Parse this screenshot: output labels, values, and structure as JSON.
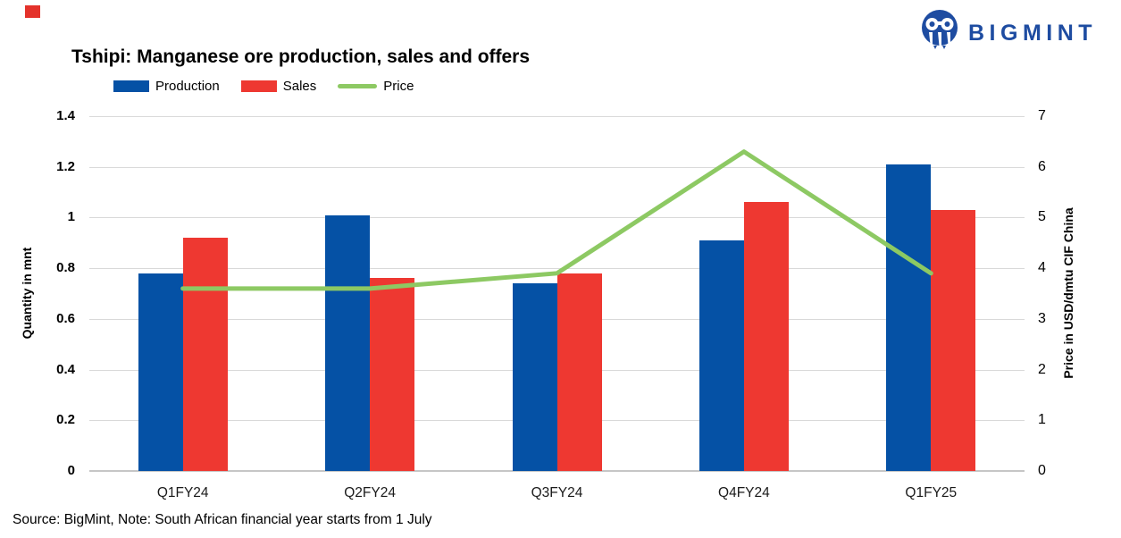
{
  "header": {
    "marker_color": "#e4322b",
    "logo": {
      "text": "BIGMINT",
      "color": "#1e4ca1",
      "icon": "bigmint-owl-icon"
    }
  },
  "chart_data": {
    "type": "bar+line",
    "title": "Tshipi: Manganese ore production, sales and offers",
    "categories": [
      "Q1FY24",
      "Q2FY24",
      "Q3FY24",
      "Q4FY24",
      "Q1FY25"
    ],
    "series": [
      {
        "name": "Production",
        "type": "bar",
        "axis": "left",
        "color": "#0551a5",
        "values": [
          0.78,
          1.01,
          0.74,
          0.91,
          1.21
        ]
      },
      {
        "name": "Sales",
        "type": "bar",
        "axis": "left",
        "color": "#ee3831",
        "values": [
          0.92,
          0.76,
          0.78,
          1.06,
          1.03
        ]
      },
      {
        "name": "Price",
        "type": "line",
        "axis": "right",
        "color": "#8dc963",
        "values": [
          3.6,
          3.6,
          3.9,
          6.3,
          3.9
        ]
      }
    ],
    "left_axis": {
      "label": "Quantity in mnt",
      "min": 0,
      "max": 1.4,
      "ticks": [
        "0",
        "0.2",
        "0.4",
        "0.6",
        "0.8",
        "1",
        "1.2",
        "1.4"
      ]
    },
    "right_axis": {
      "label": "Price in USD/dmtu CIF China",
      "min": 0,
      "max": 7,
      "ticks": [
        "0",
        "1",
        "2",
        "3",
        "4",
        "5",
        "6",
        "7"
      ]
    },
    "grid": true,
    "gridline_color": "#d9d9d9",
    "axis_line_color": "#c6c6c6",
    "legend_position": "top-left"
  },
  "footer": {
    "source_note": "Source: BigMint, Note: South African financial year starts from 1 July"
  }
}
